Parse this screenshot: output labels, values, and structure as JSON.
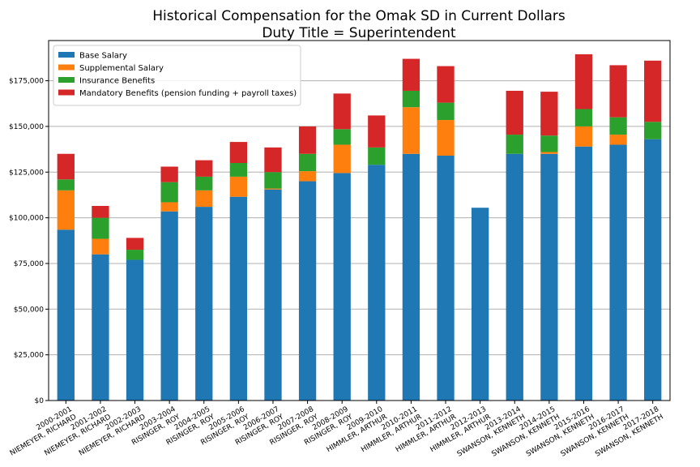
{
  "chart_data": {
    "type": "bar",
    "stacked": true,
    "title": "Historical Compensation for the Omak SD in Current Dollars",
    "subtitle": "Duty Title = Superintendent",
    "xlabel": "",
    "ylabel": "",
    "ylim": [
      0,
      197000
    ],
    "yticks": [
      0,
      25000,
      50000,
      75000,
      100000,
      125000,
      150000,
      175000
    ],
    "ytick_labels": [
      "$0",
      "$25,000",
      "$50,000",
      "$75,000",
      "$100,000",
      "$125,000",
      "$150,000",
      "$175,000"
    ],
    "grid": "horizontal",
    "legend_position": "top-left",
    "categories": [
      {
        "year": "2000-2001",
        "name": "NIEMEYER, RICHARD"
      },
      {
        "year": "2001-2002",
        "name": "NIEMEYER, RICHARD"
      },
      {
        "year": "2002-2003",
        "name": "NIEMEYER, RICHARD"
      },
      {
        "year": "2003-2004",
        "name": "RISINGER, ROY"
      },
      {
        "year": "2004-2005",
        "name": "RISINGER, ROY"
      },
      {
        "year": "2005-2006",
        "name": "RISINGER, ROY"
      },
      {
        "year": "2006-2007",
        "name": "RISINGER, ROY"
      },
      {
        "year": "2007-2008",
        "name": "RISINGER, ROY"
      },
      {
        "year": "2008-2009",
        "name": "RISINGER, ROY"
      },
      {
        "year": "2009-2010",
        "name": "HIMMLER, ARTHUR"
      },
      {
        "year": "2010-2011",
        "name": "HIMMLER, ARTHUR"
      },
      {
        "year": "2011-2012",
        "name": "HIMMLER, ARTHUR"
      },
      {
        "year": "2012-2013",
        "name": "HIMMLER, ARTHUR"
      },
      {
        "year": "2013-2014",
        "name": "SWANSON, KENNETH"
      },
      {
        "year": "2014-2015",
        "name": "SWANSON, KENNETH"
      },
      {
        "year": "2015-2016",
        "name": "SWANSON, KENNETH"
      },
      {
        "year": "2016-2017",
        "name": "SWANSON, KENNETH"
      },
      {
        "year": "2017-2018",
        "name": "SWANSON, KENNETH"
      }
    ],
    "series": [
      {
        "name": "Base Salary",
        "color": "#1f77b4",
        "values": [
          93500,
          80000,
          77000,
          103500,
          106000,
          111500,
          115500,
          120000,
          124500,
          129000,
          135000,
          134000,
          105500,
          135000,
          135000,
          139000,
          140000,
          143000
        ]
      },
      {
        "name": "Supplemental Salary",
        "color": "#ff7f0e",
        "values": [
          21500,
          8500,
          0,
          5000,
          9000,
          11000,
          500,
          5500,
          15500,
          0,
          25500,
          19500,
          0,
          0,
          1000,
          11000,
          5500,
          0
        ]
      },
      {
        "name": "Insurance Benefits",
        "color": "#2ca02c",
        "values": [
          6000,
          11500,
          5500,
          11000,
          7500,
          7500,
          9000,
          9500,
          8500,
          9500,
          9000,
          9500,
          0,
          10500,
          9000,
          9500,
          9500,
          9500
        ]
      },
      {
        "name": "Mandatory Benefits (pension funding + payroll taxes)",
        "color": "#d62728",
        "values": [
          14000,
          6500,
          6500,
          8500,
          9000,
          11500,
          13500,
          15000,
          19500,
          17500,
          17500,
          20000,
          0,
          24000,
          24000,
          30000,
          28500,
          33500
        ]
      }
    ]
  }
}
